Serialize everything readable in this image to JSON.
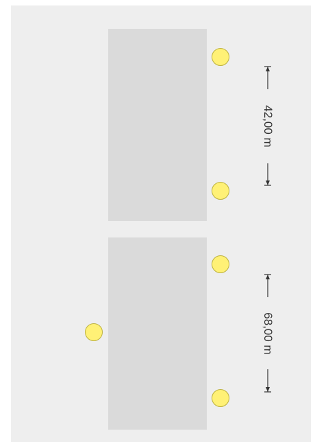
{
  "colors": {
    "panel": "#eeeeee",
    "block": "#dadada",
    "lamp_fill": "#fff176",
    "lamp_stroke": "#bdb23f",
    "dimension_line": "#333333"
  },
  "dimensions": [
    {
      "label": "42,00 m"
    },
    {
      "label": "68,00 m"
    }
  ],
  "icons": {
    "lamp": "light-pole-icon"
  }
}
